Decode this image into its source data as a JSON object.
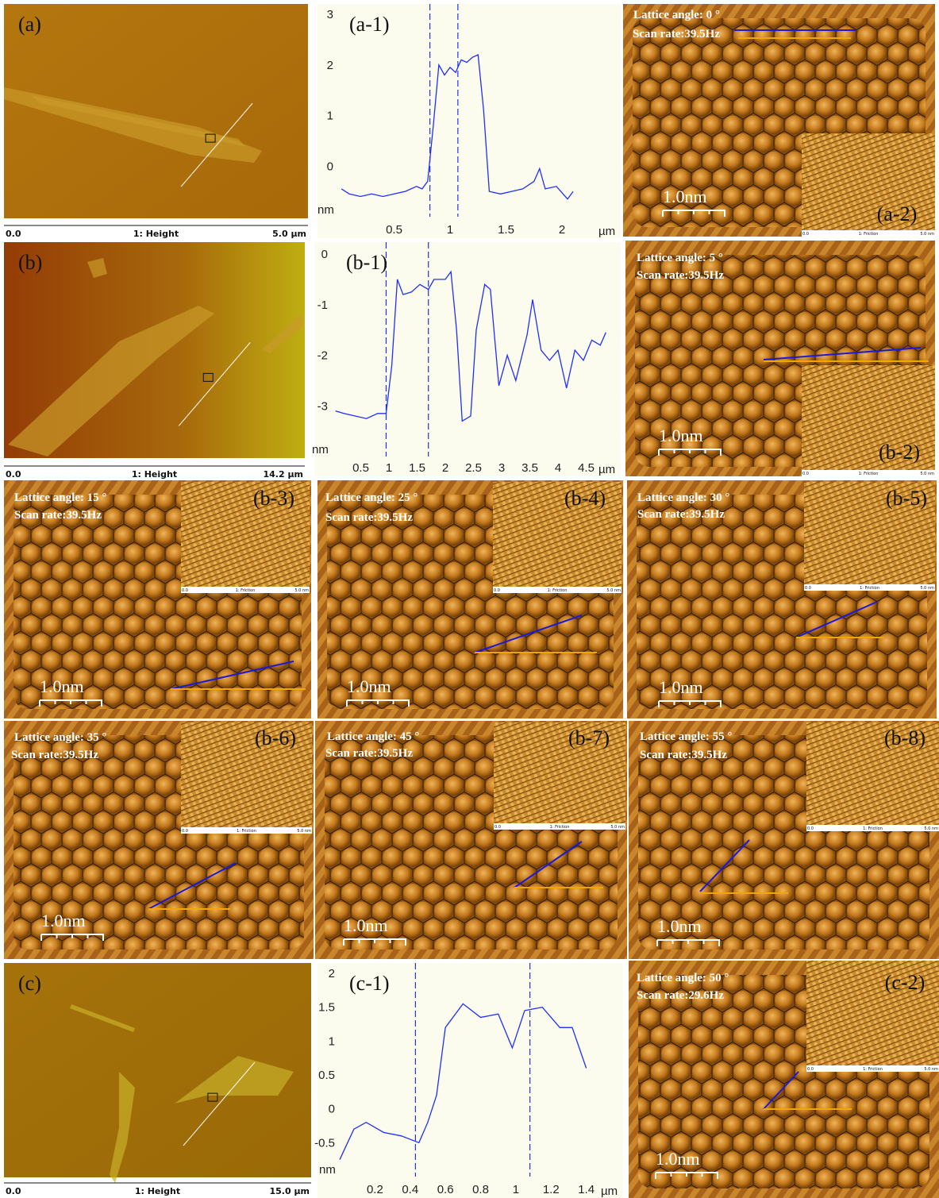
{
  "chart_data": [
    {
      "type": "line",
      "title": "(a-1)",
      "xlabel": "µm",
      "ylabel": "nm",
      "color": "#1f2fff",
      "x": [
        0.03,
        0.1,
        0.2,
        0.3,
        0.4,
        0.5,
        0.6,
        0.7,
        0.75,
        0.8,
        0.85,
        0.9,
        0.95,
        1.0,
        1.05,
        1.1,
        1.15,
        1.2,
        1.25,
        1.3,
        1.35,
        1.45,
        1.55,
        1.65,
        1.75,
        1.8,
        1.85,
        1.95,
        2.05,
        2.1
      ],
      "values": [
        -0.45,
        -0.55,
        -0.6,
        -0.55,
        -0.6,
        -0.55,
        -0.5,
        -0.4,
        -0.45,
        -0.3,
        0.8,
        2.0,
        1.8,
        1.95,
        1.85,
        2.1,
        2.05,
        2.15,
        2.2,
        1.1,
        -0.5,
        -0.55,
        -0.5,
        -0.45,
        -0.3,
        -0.05,
        -0.45,
        -0.4,
        -0.65,
        -0.5
      ],
      "markers": [
        0.82,
        1.07
      ],
      "xlim": [
        0,
        2.5
      ],
      "ylim": [
        -1,
        3
      ],
      "xticks": [
        0.5,
        1,
        1.5,
        2
      ],
      "yticks": [
        0,
        1,
        2,
        3
      ]
    },
    {
      "type": "line",
      "title": "(b-1)",
      "xlabel": "µm",
      "ylabel": "nm",
      "color": "#1f2fff",
      "x": [
        0.05,
        0.2,
        0.4,
        0.6,
        0.8,
        0.95,
        1.05,
        1.15,
        1.25,
        1.4,
        1.55,
        1.7,
        1.8,
        2.0,
        2.1,
        2.2,
        2.3,
        2.45,
        2.55,
        2.7,
        2.8,
        2.95,
        3.1,
        3.25,
        3.45,
        3.55,
        3.7,
        3.85,
        4.0,
        4.15,
        4.3,
        4.45,
        4.6,
        4.75,
        4.85
      ],
      "values": [
        -3.1,
        -3.15,
        -3.2,
        -3.25,
        -3.15,
        -3.15,
        -2.2,
        -0.5,
        -0.8,
        -0.75,
        -0.6,
        -0.7,
        -0.5,
        -0.5,
        -0.35,
        -1.5,
        -3.3,
        -3.2,
        -1.5,
        -0.6,
        -0.7,
        -2.6,
        -2.0,
        -2.5,
        -1.6,
        -0.9,
        -1.9,
        -2.1,
        -1.9,
        -2.65,
        -1.9,
        -2.1,
        -1.7,
        -1.8,
        -1.55
      ],
      "markers": [
        0.95,
        1.7
      ],
      "xlim": [
        0,
        5
      ],
      "ylim": [
        -4,
        0
      ],
      "xticks": [
        0.5,
        1,
        1.5,
        2,
        2.5,
        3,
        3.5,
        4,
        4.5
      ],
      "yticks": [
        -3,
        -2,
        -1,
        0
      ]
    },
    {
      "type": "line",
      "title": "(c-1)",
      "xlabel": "µm",
      "ylabel": "nm",
      "color": "#1f2fff",
      "x": [
        0,
        0.08,
        0.15,
        0.25,
        0.35,
        0.45,
        0.5,
        0.55,
        0.6,
        0.7,
        0.8,
        0.9,
        0.98,
        1.05,
        1.15,
        1.25,
        1.32,
        1.4
      ],
      "values": [
        -0.75,
        -0.3,
        -0.2,
        -0.35,
        -0.4,
        -0.5,
        -0.2,
        0.2,
        1.2,
        1.55,
        1.35,
        1.4,
        0.9,
        1.45,
        1.5,
        1.2,
        1.2,
        0.6
      ],
      "markers": [
        0.43,
        1.08
      ],
      "xlim": [
        0,
        1.6
      ],
      "ylim": [
        -1,
        2
      ],
      "xticks": [
        0.2,
        0.4,
        0.6,
        0.8,
        1,
        1.2,
        1.4
      ],
      "yticks": [
        -0.5,
        0,
        0.5,
        1,
        1.5,
        2
      ]
    }
  ],
  "height_images": [
    {
      "label": "(a)",
      "footer": [
        "0.0",
        "1: Height",
        "5.0 µm"
      ]
    },
    {
      "label": "(b)",
      "footer": [
        "0.0",
        "1: Height",
        "14.2 µm"
      ]
    },
    {
      "label": "(c)",
      "footer": [
        "0.0",
        "1: Height",
        "15.0 µm"
      ]
    }
  ],
  "lattice_images": [
    {
      "label": "(a-2)",
      "angle": "Lattice angle: 0 °",
      "rate": "Scan rate:39.5Hz",
      "scale": "1.0nm",
      "inset": [
        "0.0",
        "1: Friction",
        "5.0 nm"
      ]
    },
    {
      "label": "(b-2)",
      "angle": "Lattice angle: 5 °",
      "rate": "Scan rate:39.5Hz",
      "scale": "1.0nm",
      "inset": [
        "0.0",
        "1: Friction",
        "5.0 nm"
      ]
    },
    {
      "label": "(b-3)",
      "angle": "Lattice angle: 15 °",
      "rate": "Scan rate:39.5Hz",
      "scale": "1.0nm",
      "inset": [
        "0.0",
        "1: Friction",
        "5.0 nm"
      ]
    },
    {
      "label": "(b-4)",
      "angle": "Lattice angle: 25 °",
      "rate": "Scan rate:39.5Hz",
      "scale": "1.0nm",
      "inset": [
        "0.0",
        "1: Friction",
        "5.0 nm"
      ]
    },
    {
      "label": "(b-5)",
      "angle": "Lattice angle: 30 °",
      "rate": "Scan rate:39.5Hz",
      "scale": "1.0nm",
      "inset": [
        "0.0",
        "1: Friction",
        "5.0 nm"
      ]
    },
    {
      "label": "(b-6)",
      "angle": "Lattice angle: 35 °",
      "rate": "Scan rate:39.5Hz",
      "scale": "1.0nm",
      "inset": [
        "0.0",
        "1: Friction",
        "5.0 nm"
      ]
    },
    {
      "label": "(b-7)",
      "angle": "Lattice angle: 45 °",
      "rate": "Scan rate:39.5Hz",
      "scale": "1.0nm",
      "inset": [
        "0.0",
        "1: Friction",
        "5.0 nm"
      ]
    },
    {
      "label": "(b-8)",
      "angle": "Lattice angle: 55 °",
      "rate": "Scan rate:39.5Hz",
      "scale": "1.0nm",
      "inset": [
        "0.0",
        "1: Friction",
        "5.0 nm"
      ]
    },
    {
      "label": "(c-2)",
      "angle": "Lattice angle: 50 °",
      "rate": "Scan rate:29.6Hz",
      "scale": "1.0nm",
      "inset": [
        "0.0",
        "1: Friction",
        "5.0 nm"
      ]
    }
  ]
}
